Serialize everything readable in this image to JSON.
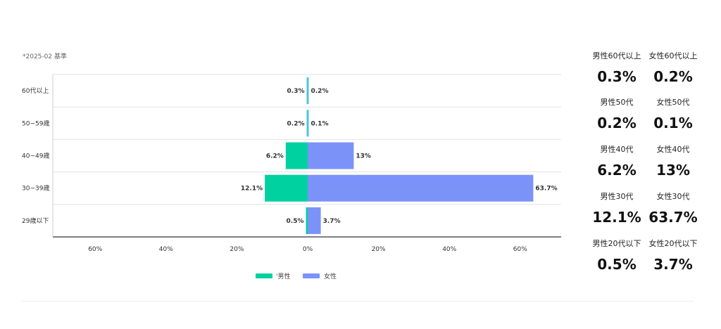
{
  "note": "*2025-02 基準",
  "colors": {
    "male": "#00d1a0",
    "female": "#7b93f9",
    "small_bar": "#4fc3dc"
  },
  "chart_data": {
    "type": "bar",
    "orientation": "horizontal-diverging",
    "categories": [
      "60代以上",
      "50~59歳",
      "40~49歳",
      "30~39歳",
      "29歳以下"
    ],
    "series": [
      {
        "name": "男性",
        "values": [
          0.3,
          0.2,
          6.2,
          12.1,
          0.5
        ]
      },
      {
        "name": "女性",
        "values": [
          0.2,
          0.1,
          13,
          63.7,
          3.7
        ]
      }
    ],
    "value_labels": {
      "male": [
        "0.3%",
        "0.2%",
        "6.2%",
        "12.1%",
        "0.5%"
      ],
      "female": [
        "0.2%",
        "0.1%",
        "13%",
        "63.7%",
        "3.7%"
      ]
    },
    "xlim": [
      -72,
      72
    ],
    "x_ticks": [
      -60,
      -40,
      -20,
      0,
      20,
      40,
      60
    ],
    "x_tick_labels": [
      "60%",
      "40%",
      "20%",
      "0%",
      "20%",
      "40%",
      "60%"
    ],
    "legend": [
      "'男性",
      "女性"
    ],
    "legend_position": "bottom-center",
    "grid": "horizontal row separators"
  },
  "stats": [
    {
      "male_label": "男性60代以上",
      "male_value": "0.3%",
      "female_label": "女性60代以上",
      "female_value": "0.2%"
    },
    {
      "male_label": "男性50代",
      "male_value": "0.2%",
      "female_label": "女性50代",
      "female_value": "0.1%"
    },
    {
      "male_label": "男性40代",
      "male_value": "6.2%",
      "female_label": "女性40代",
      "female_value": "13%"
    },
    {
      "male_label": "男性30代",
      "male_value": "12.1%",
      "female_label": "女性30代",
      "female_value": "63.7%"
    },
    {
      "male_label": "男性20代以下",
      "male_value": "0.5%",
      "female_label": "女性20代以下",
      "female_value": "3.7%"
    }
  ]
}
